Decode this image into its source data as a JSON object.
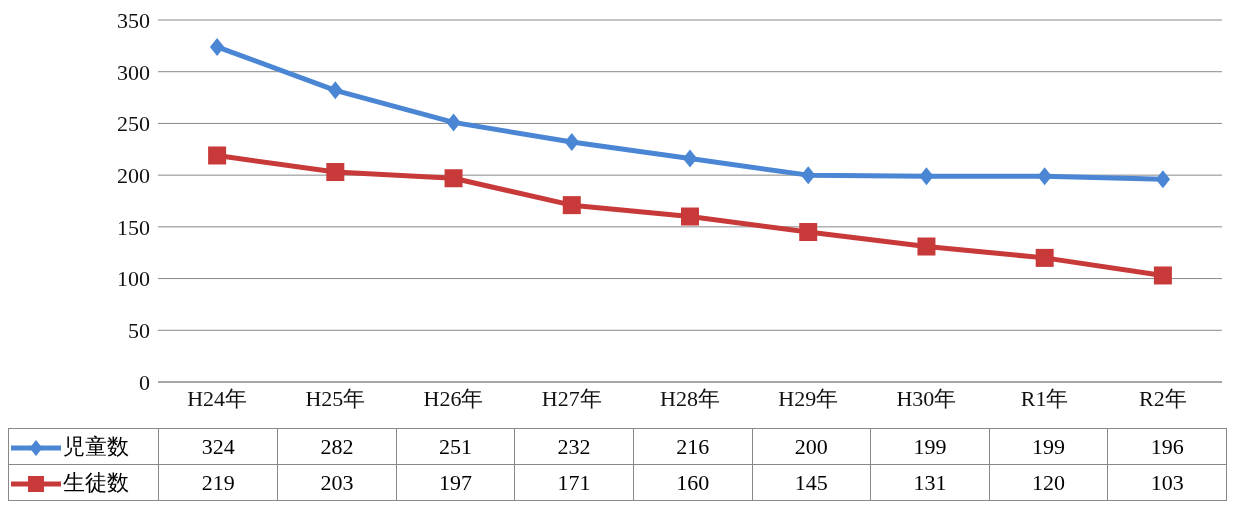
{
  "chart_data": {
    "type": "line",
    "categories": [
      "H24年",
      "H25年",
      "H26年",
      "H27年",
      "H28年",
      "H29年",
      "H30年",
      "R1年",
      "R2年"
    ],
    "series": [
      {
        "name": "児童数",
        "color": "#4a86d4",
        "marker": "diamond",
        "values": [
          324,
          282,
          251,
          232,
          216,
          200,
          199,
          199,
          196
        ]
      },
      {
        "name": "生徒数",
        "color": "#c83a3a",
        "marker": "square",
        "values": [
          219,
          203,
          197,
          171,
          160,
          145,
          131,
          120,
          103
        ]
      }
    ],
    "ylim": [
      0,
      350
    ],
    "yticks": [
      0,
      50,
      100,
      150,
      200,
      250,
      300,
      350
    ],
    "grid": "y",
    "legend": "bottom",
    "data_labels": true
  }
}
